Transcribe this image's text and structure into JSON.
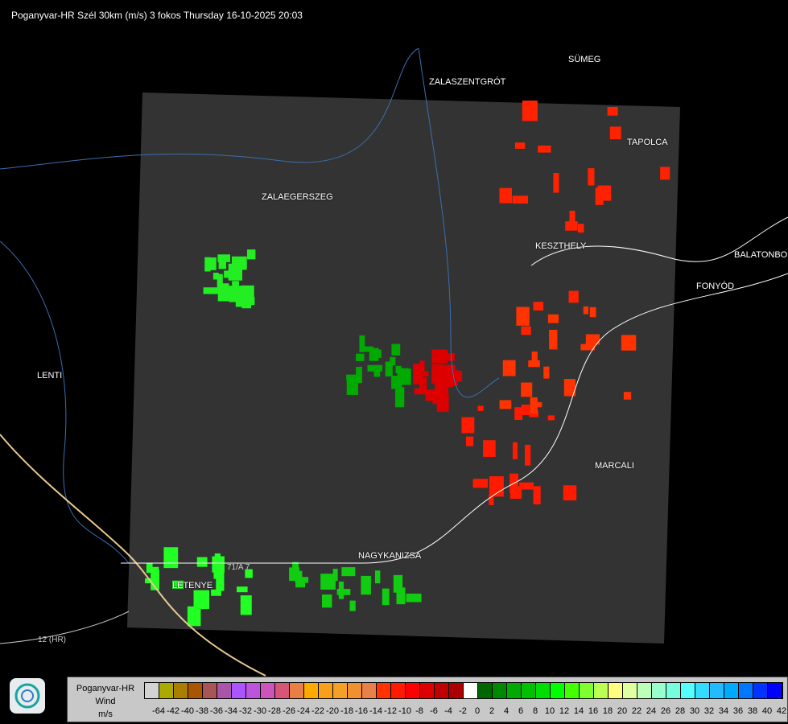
{
  "title": "Poganyvar-HR Szél 30km (m/s) 3 fokos Thursday 16-10-2025 20:03",
  "cities": [
    {
      "name": "SÜMEG"
    },
    {
      "name": "ZALASZENTGRÓT"
    },
    {
      "name": "TAPOLCA"
    },
    {
      "name": "ZALAEGERSZEG"
    },
    {
      "name": "KESZTHELY"
    },
    {
      "name": "BALATONBO"
    },
    {
      "name": "FONYÓD"
    },
    {
      "name": "LENTI"
    },
    {
      "name": "MARCALI"
    },
    {
      "name": "NAGYKANIZSA"
    },
    {
      "name": "LETENYE"
    }
  ],
  "roads": [
    "71/A 7",
    "12 (HR)"
  ],
  "legend": {
    "line1": "Poganyvar-HR",
    "line2": "Wind",
    "line3": "m/s",
    "labels": [
      "-64",
      "-42",
      "-40",
      "-38",
      "-36",
      "-34",
      "-32",
      "-30",
      "-28",
      "-26",
      "-24",
      "-22",
      "-20",
      "-18",
      "-16",
      "-14",
      "-12",
      "-10",
      "-8",
      "-6",
      "-4",
      "-2",
      "0",
      "2",
      "4",
      "6",
      "8",
      "10",
      "12",
      "14",
      "16",
      "18",
      "20",
      "22",
      "24",
      "26",
      "28",
      "30",
      "32",
      "34",
      "36",
      "38",
      "40",
      "42"
    ],
    "colors": [
      "#d3d3d3",
      "#aaaa00",
      "#aa7f00",
      "#aa5500",
      "#aa5555",
      "#aa55aa",
      "#aa55ff",
      "#bb55dd",
      "#cc55bb",
      "#d75577",
      "#e87f44",
      "#ffaa00",
      "#f8a01a",
      "#f4a028",
      "#f09030",
      "#e88048",
      "#ff3300",
      "#ff1a00",
      "#ff0000",
      "#dd0000",
      "#c00000",
      "#aa0000",
      "#ffffff",
      "#006600",
      "#008800",
      "#00aa00",
      "#00c000",
      "#00dd00",
      "#00ff00",
      "#44ff00",
      "#80ff30",
      "#bbff55",
      "#ffff80",
      "#e0ffa0",
      "#bbffbb",
      "#99ffcc",
      "#77ffdd",
      "#55ffff",
      "#33ddff",
      "#22bbff",
      "#00aaff",
      "#0077ff",
      "#0033ff",
      "#0000ff"
    ]
  },
  "logo": "radar-logo-icon"
}
